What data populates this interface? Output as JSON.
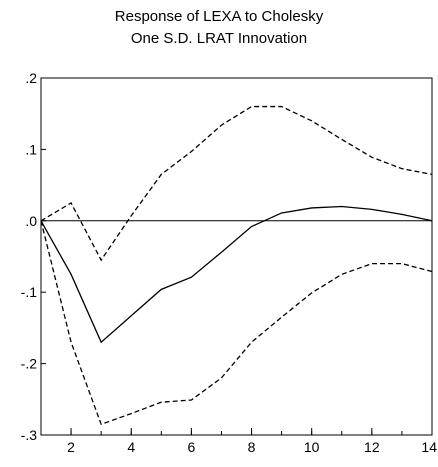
{
  "chart_data": {
    "type": "line",
    "title": [
      "Response of LEXA to Cholesky",
      "One S.D. LRAT Innovation"
    ],
    "xlabel": "",
    "ylabel": "",
    "xlim": [
      1,
      14
    ],
    "ylim": [
      -0.3,
      0.2
    ],
    "x_ticks": [
      2,
      4,
      6,
      8,
      10,
      12,
      14
    ],
    "x_tick_labels": [
      "2",
      "4",
      "6",
      "8",
      "10",
      "12",
      "14"
    ],
    "y_ticks": [
      0.2,
      0.1,
      0.0,
      -0.1,
      -0.2,
      -0.3
    ],
    "y_tick_labels": [
      ".2",
      ".1",
      ".0",
      "-.1",
      "-.2",
      "-.3"
    ],
    "zero_line": true,
    "grid": false,
    "x": [
      1,
      2,
      3,
      4,
      5,
      6,
      7,
      8,
      9,
      10,
      11,
      12,
      13,
      14
    ],
    "series": [
      {
        "style": "solid",
        "values": [
          0.0,
          -0.075,
          -0.17,
          -0.133,
          -0.096,
          -0.079,
          -0.044,
          -0.008,
          0.011,
          0.018,
          0.02,
          0.016,
          0.009,
          0.0
        ]
      },
      {
        "style": "dashed",
        "values": [
          0.0,
          0.025,
          -0.055,
          0.007,
          0.065,
          0.097,
          0.134,
          0.16,
          0.16,
          0.14,
          0.114,
          0.089,
          0.073,
          0.065
        ]
      },
      {
        "style": "dashed",
        "values": [
          0.0,
          -0.17,
          -0.285,
          -0.27,
          -0.254,
          -0.251,
          -0.22,
          -0.17,
          -0.135,
          -0.101,
          -0.075,
          -0.06,
          -0.06,
          -0.071
        ]
      }
    ]
  }
}
